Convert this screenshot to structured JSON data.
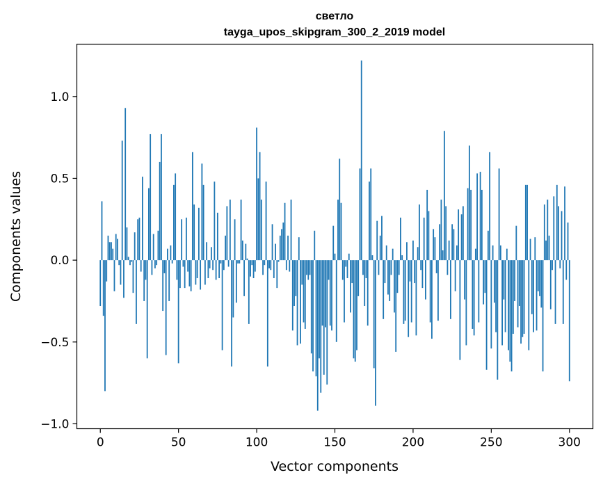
{
  "chart_data": {
    "type": "bar",
    "title_line1": "светло",
    "title_line2": "tayga_upos_skipgram_300_2_2019 model",
    "xlabel": "Vector components",
    "ylabel": "Components values",
    "xlim": [
      -15,
      315
    ],
    "ylim": [
      -1.03,
      1.32
    ],
    "x_ticks": [
      0,
      50,
      100,
      150,
      200,
      250,
      300
    ],
    "x_tick_labels": [
      "0",
      "50",
      "100",
      "150",
      "200",
      "250",
      "300"
    ],
    "y_ticks": [
      -1.0,
      -0.5,
      0.0,
      0.5,
      1.0
    ],
    "y_tick_labels": [
      "−1.0",
      "−0.5",
      "0.0",
      "0.5",
      "1.0"
    ],
    "grid": false,
    "bar_color": "#1f77b4",
    "values": [
      -0.28,
      0.36,
      -0.34,
      -0.8,
      -0.13,
      0.15,
      0.11,
      0.11,
      0.07,
      -0.19,
      0.16,
      0.13,
      -0.03,
      -0.15,
      0.73,
      -0.23,
      0.93,
      0.2,
      0.02,
      -0.03,
      -0.01,
      -0.2,
      0.17,
      -0.39,
      0.25,
      0.26,
      -0.07,
      0.51,
      -0.25,
      -0.12,
      -0.6,
      0.44,
      0.77,
      -0.09,
      0.16,
      -0.05,
      -0.03,
      0.18,
      0.6,
      0.77,
      -0.31,
      -0.08,
      -0.58,
      0.07,
      -0.25,
      0.09,
      -0.02,
      0.46,
      0.53,
      -0.12,
      -0.63,
      -0.17,
      0.25,
      -0.04,
      -0.17,
      0.26,
      -0.07,
      -0.16,
      -0.19,
      0.66,
      0.34,
      -0.15,
      -0.11,
      0.32,
      -0.18,
      0.59,
      0.46,
      -0.15,
      0.11,
      -0.11,
      -0.05,
      0.08,
      -0.06,
      0.48,
      -0.12,
      0.29,
      -0.11,
      -0.02,
      -0.55,
      -0.06,
      0.15,
      0.33,
      -0.04,
      0.37,
      -0.65,
      -0.35,
      0.25,
      -0.26,
      -0.02,
      -0.02,
      0.37,
      0.12,
      -0.22,
      0.1,
      0.01,
      -0.39,
      -0.1,
      -0.03,
      -0.11,
      -0.07,
      0.81,
      0.5,
      0.66,
      0.37,
      -0.09,
      -0.03,
      0.48,
      -0.65,
      -0.05,
      -0.06,
      0.22,
      -0.11,
      0.1,
      -0.17,
      -0.01,
      0.15,
      0.19,
      0.23,
      0.35,
      -0.06,
      0.15,
      -0.07,
      0.37,
      -0.43,
      -0.28,
      -0.22,
      -0.52,
      0.14,
      -0.51,
      -0.15,
      -0.38,
      -0.42,
      -0.09,
      -0.12,
      -0.09,
      -0.57,
      -0.68,
      0.18,
      -0.71,
      -0.92,
      -0.6,
      -0.81,
      -0.4,
      -0.7,
      -0.41,
      -0.76,
      -0.12,
      -0.4,
      -0.43,
      0.21,
      0.04,
      -0.5,
      0.37,
      0.62,
      0.35,
      -0.12,
      -0.38,
      -0.04,
      -0.11,
      0.04,
      -0.32,
      -0.14,
      -0.6,
      -0.62,
      -0.55,
      -0.22,
      0.56,
      1.22,
      -0.09,
      -0.28,
      -0.11,
      -0.4,
      0.48,
      0.56,
      0.03,
      -0.66,
      -0.89,
      0.24,
      -0.09,
      0.15,
      0.27,
      -0.36,
      -0.14,
      0.09,
      -0.21,
      -0.25,
      -0.09,
      0.07,
      -0.32,
      -0.56,
      -0.2,
      -0.09,
      0.26,
      0.03,
      -0.39,
      -0.37,
      0.11,
      -0.47,
      -0.13,
      -0.38,
      0.12,
      -0.14,
      -0.46,
      0.08,
      0.34,
      -0.06,
      -0.17,
      0.26,
      -0.24,
      0.43,
      0.3,
      -0.38,
      -0.48,
      0.19,
      0.14,
      -0.08,
      -0.37,
      0.22,
      0.37,
      0.06,
      0.79,
      0.33,
      -0.09,
      0.12,
      -0.36,
      0.22,
      0.19,
      -0.19,
      0.09,
      0.31,
      -0.61,
      0.28,
      0.33,
      -0.24,
      -0.52,
      0.44,
      0.7,
      0.43,
      -0.42,
      -0.46,
      0.07,
      0.53,
      -0.38,
      0.54,
      0.43,
      -0.27,
      -0.2,
      -0.67,
      0.18,
      0.66,
      -0.54,
      0.09,
      -0.26,
      -0.44,
      -0.73,
      0.56,
      0.09,
      -0.52,
      -0.24,
      -0.44,
      0.07,
      -0.55,
      -0.62,
      -0.68,
      -0.45,
      -0.25,
      0.21,
      -0.41,
      -0.28,
      -0.51,
      -0.47,
      -0.45,
      0.46,
      0.46,
      -0.55,
      0.13,
      -0.33,
      -0.44,
      0.14,
      -0.43,
      -0.19,
      -0.22,
      -0.29,
      -0.68,
      0.34,
      0.12,
      0.37,
      0.15,
      -0.3,
      -0.06,
      0.39,
      -0.39,
      0.46,
      0.33,
      -0.05,
      0.3,
      -0.39,
      0.45,
      -0.12,
      0.23,
      -0.74
    ]
  }
}
